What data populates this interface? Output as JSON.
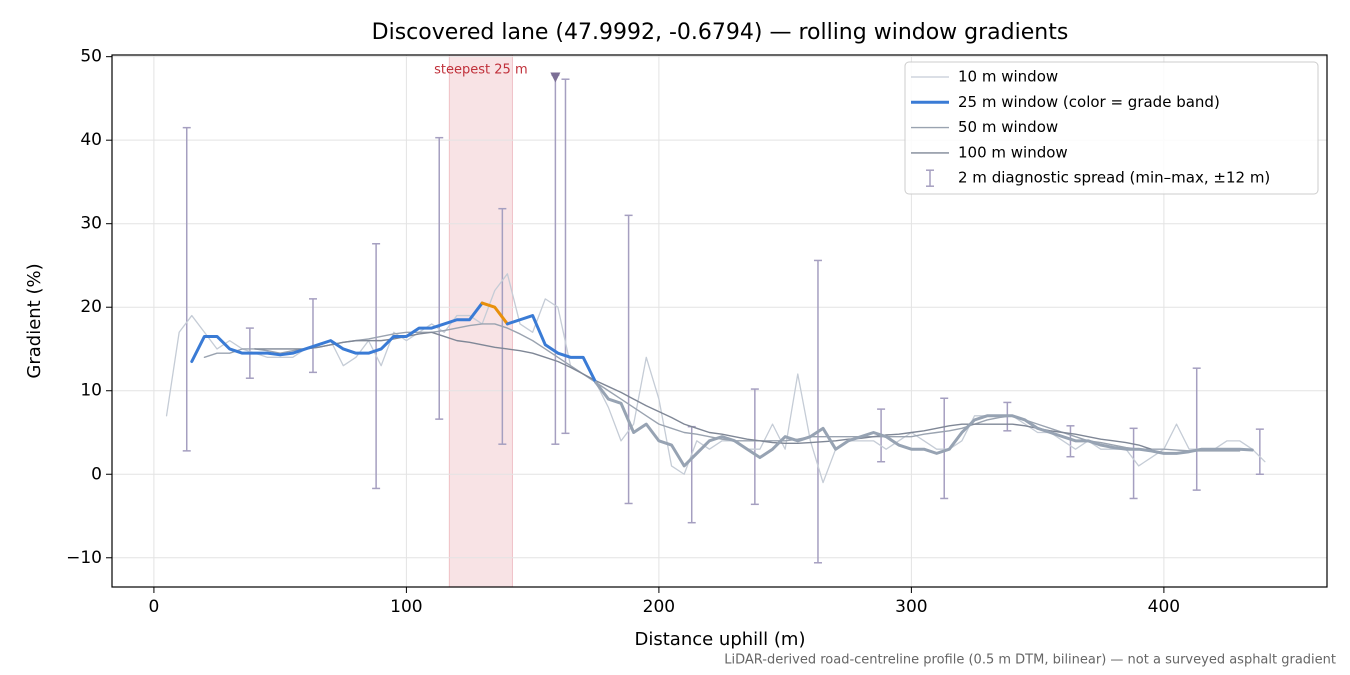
{
  "chart_data": {
    "type": "line",
    "title": "Discovered lane (47.9992, -0.6794) — rolling window gradients",
    "xlabel": "Distance uphill (m)",
    "ylabel": "Gradient (%)",
    "footnote": "LiDAR-derived road-centreline profile (0.5 m DTM, bilinear) — not a surveyed asphalt gradient",
    "xlim": [
      -16.6,
      464.6
    ],
    "ylim": [
      -13.5,
      50.2
    ],
    "xticks": [
      0,
      100,
      200,
      300,
      400
    ],
    "yticks": [
      {
        "value": -10,
        "label": "−10"
      },
      0,
      10,
      20,
      30,
      40,
      50
    ],
    "grid": true,
    "legend": "upper right",
    "x": [
      5,
      10,
      15,
      20,
      25,
      30,
      35,
      40,
      45,
      50,
      55,
      60,
      65,
      70,
      75,
      80,
      85,
      90,
      95,
      100,
      105,
      110,
      115,
      120,
      125,
      130,
      135,
      140,
      145,
      150,
      155,
      160,
      165,
      170,
      175,
      180,
      185,
      190,
      195,
      200,
      205,
      210,
      215,
      220,
      225,
      230,
      235,
      240,
      245,
      250,
      255,
      260,
      265,
      270,
      275,
      280,
      285,
      290,
      295,
      300,
      305,
      310,
      315,
      320,
      325,
      330,
      335,
      340,
      345,
      350,
      355,
      360,
      365,
      370,
      375,
      380,
      385,
      390,
      395,
      400,
      405,
      410,
      415,
      420,
      425,
      430,
      435,
      440
    ],
    "series": [
      {
        "name": "10 m window",
        "color": "#c5ccd6",
        "width": 1.3,
        "values": [
          7,
          17,
          19,
          17,
          15,
          16,
          15,
          14.5,
          14,
          14,
          14,
          15,
          15.5,
          16,
          13,
          14,
          16,
          13,
          17,
          16,
          17,
          18,
          17,
          19,
          19,
          18,
          22,
          24,
          18,
          17,
          21,
          20,
          13,
          12,
          11,
          8,
          4,
          6,
          14,
          9,
          1,
          0,
          4,
          3,
          4,
          4,
          3,
          3,
          6,
          3,
          12,
          4,
          -1,
          3,
          4,
          4,
          4,
          3,
          4,
          5,
          4,
          3,
          3,
          4,
          7,
          7,
          7,
          7,
          6,
          5,
          5,
          4,
          3,
          4,
          3,
          3,
          3,
          1,
          2,
          3,
          6,
          3,
          3,
          3,
          4,
          4,
          3,
          1.5
        ]
      },
      {
        "name": "25 m window (color = grade band)",
        "color": "#3a7bd5",
        "width": 3,
        "values": [
          null,
          null,
          13.5,
          16.5,
          16.5,
          15,
          14.5,
          14.5,
          14.5,
          14.3,
          14.5,
          15,
          15.5,
          16,
          15,
          14.5,
          14.5,
          15,
          16.5,
          16.5,
          17.5,
          17.5,
          18,
          18.5,
          18.5,
          20.5,
          20,
          18,
          18.5,
          19,
          15.5,
          14.5,
          14,
          14,
          11,
          9,
          8.5,
          5,
          6,
          4,
          3.5,
          1,
          2.5,
          4,
          4.5,
          4,
          3,
          2,
          3,
          4.5,
          4,
          4.5,
          5.5,
          3,
          4,
          4.5,
          5,
          4.5,
          3.5,
          3,
          3,
          2.5,
          3,
          5,
          6.5,
          7,
          7,
          7,
          6.5,
          5.5,
          5,
          4.5,
          4,
          4,
          3.5,
          3.2,
          3,
          3,
          2.8,
          2.5,
          2.5,
          2.7,
          3,
          3,
          3,
          3,
          2.9,
          null
        ],
        "colors": [
          null,
          null,
          "#3a7bd5",
          "#3a7bd5",
          "#3a7bd5",
          "#3a7bd5",
          "#3a7bd5",
          "#3a7bd5",
          "#3a7bd5",
          "#3a7bd5",
          "#3a7bd5",
          "#3a7bd5",
          "#3a7bd5",
          "#3a7bd5",
          "#3a7bd5",
          "#3a7bd5",
          "#3a7bd5",
          "#3a7bd5",
          "#3a7bd5",
          "#3a7bd5",
          "#3a7bd5",
          "#3a7bd5",
          "#3a7bd5",
          "#3a7bd5",
          "#3a7bd5",
          "#e8900c",
          "#e8900c",
          "#3a7bd5",
          "#3a7bd5",
          "#3a7bd5",
          "#3a7bd5",
          "#3a7bd5",
          "#3a7bd5",
          "#3a7bd5",
          "#97a3b3",
          "#97a3b3",
          "#97a3b3",
          "#97a3b3",
          "#97a3b3",
          "#97a3b3",
          "#97a3b3",
          "#97a3b3",
          "#97a3b3",
          "#97a3b3",
          "#97a3b3",
          "#97a3b3",
          "#97a3b3",
          "#97a3b3",
          "#97a3b3",
          "#97a3b3",
          "#97a3b3",
          "#97a3b3",
          "#97a3b3",
          "#97a3b3",
          "#97a3b3",
          "#97a3b3",
          "#97a3b3",
          "#97a3b3",
          "#97a3b3",
          "#97a3b3",
          "#97a3b3",
          "#97a3b3",
          "#97a3b3",
          "#97a3b3",
          "#97a3b3",
          "#97a3b3",
          "#97a3b3",
          "#97a3b3",
          "#97a3b3",
          "#97a3b3",
          "#97a3b3",
          "#97a3b3",
          "#97a3b3",
          "#97a3b3",
          "#97a3b3",
          "#97a3b3",
          "#97a3b3",
          "#97a3b3",
          "#97a3b3",
          "#97a3b3",
          "#97a3b3",
          "#97a3b3",
          "#97a3b3",
          "#97a3b3",
          "#97a3b3",
          "#97a3b3",
          "#97a3b3",
          null
        ]
      },
      {
        "name": "50 m window",
        "color": "#9aa3b0",
        "width": 1.4,
        "values": [
          null,
          null,
          null,
          14,
          14.5,
          14.5,
          15,
          15,
          14.8,
          14.5,
          14.8,
          15,
          15.2,
          15.5,
          15.8,
          16,
          16.2,
          16.5,
          16.8,
          17,
          17,
          17,
          17.2,
          17.5,
          17.8,
          18,
          18,
          17.5,
          16.8,
          16,
          15,
          14,
          13,
          12,
          11,
          10,
          9,
          8,
          7,
          6,
          5.5,
          5,
          4.8,
          4.5,
          4.2,
          4,
          4,
          4,
          4,
          4,
          4.2,
          4.5,
          4.5,
          4.5,
          4.5,
          4.5,
          4.5,
          4.5,
          4.5,
          4.5,
          4.8,
          5,
          5.2,
          5.5,
          6,
          6.5,
          6.8,
          7,
          6.5,
          6,
          5.5,
          5,
          4.5,
          4,
          3.8,
          3.5,
          3.2,
          3,
          3,
          3,
          2.9,
          2.8,
          2.8,
          2.8,
          2.8,
          2.8,
          null,
          null
        ]
      },
      {
        "name": "100 m window",
        "color": "#7f8796",
        "width": 1.4,
        "values": [
          null,
          null,
          null,
          null,
          null,
          null,
          null,
          15,
          15,
          15,
          15,
          15,
          15.2,
          15.5,
          15.8,
          16,
          16,
          16,
          16.2,
          16.5,
          16.8,
          17,
          16.5,
          16,
          15.8,
          15.5,
          15.2,
          15,
          14.8,
          14.5,
          14,
          13.5,
          12.8,
          12,
          11.2,
          10.5,
          9.8,
          9,
          8.2,
          7.5,
          6.8,
          6,
          5.5,
          5,
          4.8,
          4.5,
          4.2,
          4,
          3.8,
          3.7,
          3.7,
          3.8,
          3.9,
          4,
          4.2,
          4.3,
          4.5,
          4.7,
          4.8,
          5,
          5.2,
          5.5,
          5.8,
          6,
          6,
          6,
          6,
          6,
          5.8,
          5.5,
          5.2,
          5,
          4.8,
          4.5,
          4.2,
          4,
          3.8,
          3.5,
          3,
          null,
          null,
          null,
          null,
          null,
          null,
          null,
          null,
          null
        ]
      }
    ],
    "error_bars": {
      "name": "2 m diagnostic spread (min–max, ±12 m)",
      "color": "#a59fc0",
      "x": [
        13,
        38,
        63,
        88,
        113,
        138,
        159,
        163,
        188,
        213,
        238,
        263,
        288,
        313,
        338,
        363,
        388,
        413,
        438
      ],
      "min": [
        2.8,
        11.5,
        12.2,
        -1.7,
        6.6,
        3.6,
        3.6,
        4.9,
        -3.5,
        -5.8,
        -3.6,
        -10.6,
        1.5,
        -2.9,
        5.2,
        2.1,
        -2.9,
        -1.9,
        0
      ],
      "max": [
        41.5,
        17.5,
        21,
        27.6,
        40.3,
        31.8,
        47.8,
        47.3,
        31,
        5.7,
        10.2,
        25.6,
        7.8,
        9.1,
        8.6,
        5.8,
        5.5,
        12.7,
        5.4
      ]
    },
    "highlight": {
      "label": "steepest 25 m",
      "color": "#e8a2aa",
      "xrange": [
        117,
        142
      ]
    },
    "marker": {
      "x": 159,
      "y": 47.5,
      "color": "#7c6f96"
    }
  }
}
